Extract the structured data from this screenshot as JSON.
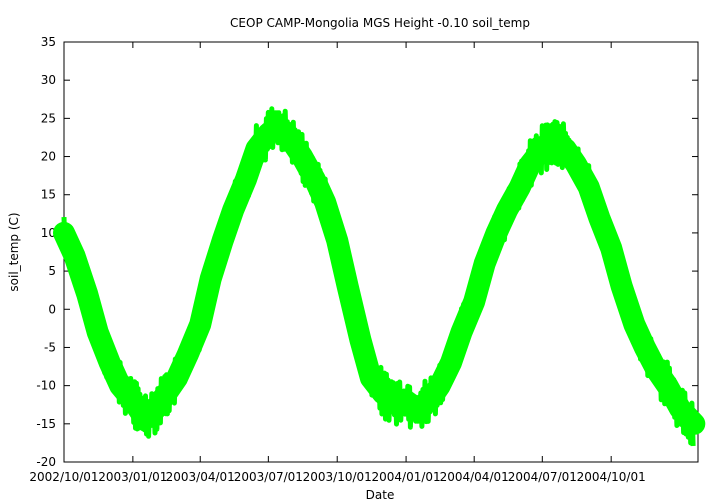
{
  "chart_data": {
    "type": "line",
    "title": "CEOP CAMP-Mongolia MGS Height -0.10 soil_temp",
    "xlabel": "Date",
    "ylabel": "soil_temp (C)",
    "ylim": [
      -20,
      35
    ],
    "xlim": [
      "2002-10-01",
      "2005-01-25"
    ],
    "y_ticks": [
      -20,
      -15,
      -10,
      -5,
      0,
      5,
      10,
      15,
      20,
      25,
      30,
      35
    ],
    "x_ticks": [
      {
        "date": "2002-10-01",
        "label": "2002/10/01"
      },
      {
        "date": "2003-01-01",
        "label": "2003/01/01"
      },
      {
        "date": "2003-04-01",
        "label": "2003/04/01"
      },
      {
        "date": "2003-07-01",
        "label": "2003/07/01"
      },
      {
        "date": "2003-10-01",
        "label": "2003/10/01"
      },
      {
        "date": "2004-01-01",
        "label": "2004/01/01"
      },
      {
        "date": "2004-04-01",
        "label": "2004/04/01"
      },
      {
        "date": "2004-07-01",
        "label": "2004/07/01"
      },
      {
        "date": "2004-10-01",
        "label": "2004/10/01"
      }
    ],
    "grid": false,
    "legend": "none",
    "series": [
      {
        "color": "#00ff00",
        "x": [
          "2002-10-01",
          "2002-10-15",
          "2002-11-01",
          "2002-11-15",
          "2002-12-01",
          "2002-12-15",
          "2003-01-01",
          "2003-01-15",
          "2003-02-01",
          "2003-02-15",
          "2003-03-01",
          "2003-03-15",
          "2003-04-01",
          "2003-04-15",
          "2003-05-01",
          "2003-05-15",
          "2003-06-01",
          "2003-06-15",
          "2003-07-01",
          "2003-07-15",
          "2003-08-01",
          "2003-08-15",
          "2003-09-01",
          "2003-09-15",
          "2003-10-01",
          "2003-10-15",
          "2003-11-01",
          "2003-11-15",
          "2003-12-01",
          "2003-12-15",
          "2004-01-01",
          "2004-01-15",
          "2004-02-01",
          "2004-02-15",
          "2004-03-01",
          "2004-03-15",
          "2004-04-01",
          "2004-04-15",
          "2004-05-01",
          "2004-05-15",
          "2004-06-01",
          "2004-06-15",
          "2004-07-01",
          "2004-07-15",
          "2004-08-01",
          "2004-08-15",
          "2004-09-01",
          "2004-09-15",
          "2004-10-01",
          "2004-10-15",
          "2004-11-01",
          "2004-11-15",
          "2004-12-01",
          "2004-12-15",
          "2005-01-01",
          "2005-01-20"
        ],
        "y": [
          10,
          7,
          2,
          -3,
          -7,
          -10,
          -12,
          -14,
          -13,
          -11,
          -9,
          -6,
          -2,
          4,
          9,
          13,
          17,
          21,
          23,
          24,
          22,
          20,
          17,
          14,
          9,
          3,
          -4,
          -9,
          -11,
          -12,
          -12,
          -13,
          -12,
          -10,
          -7,
          -3,
          1,
          6,
          10,
          13,
          16,
          19,
          21,
          22,
          21,
          19,
          16,
          12,
          8,
          3,
          -2,
          -5,
          -8,
          -10,
          -13,
          -15
        ]
      }
    ]
  }
}
